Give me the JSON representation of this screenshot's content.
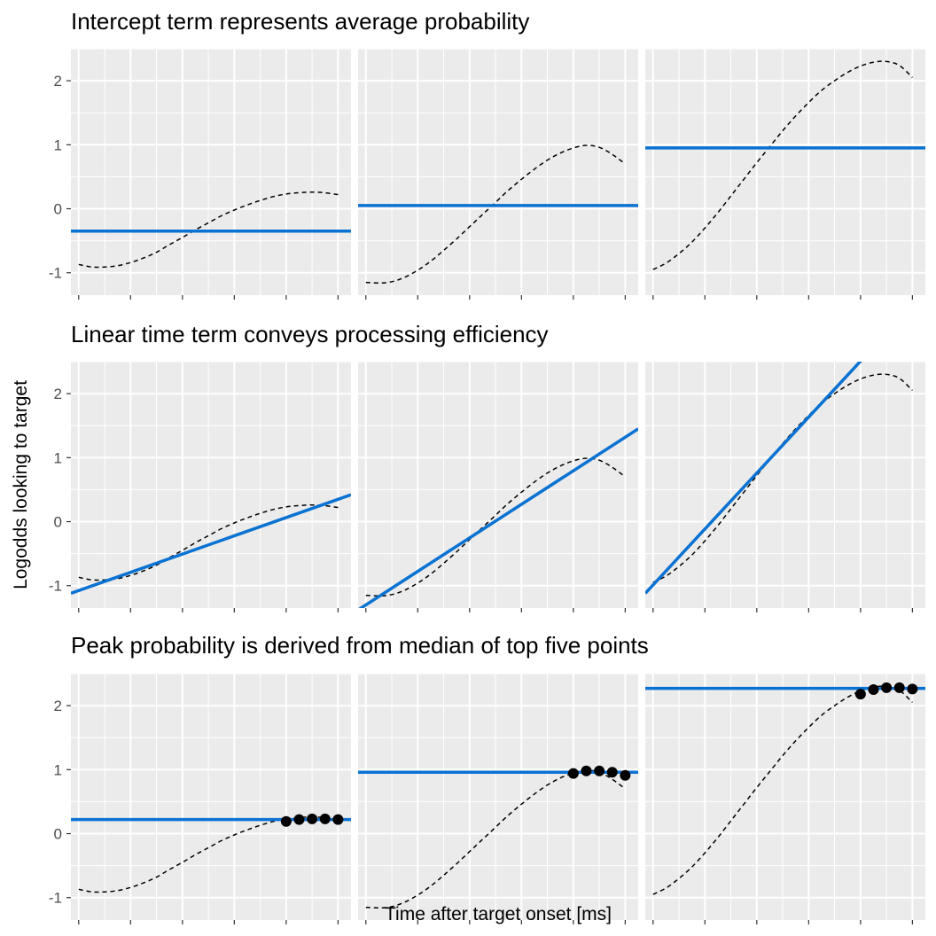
{
  "chart_data": {
    "type": "line",
    "xlabel": "Time after target onset [ms]",
    "ylabel": "Logodds looking to target",
    "ylim": [
      -1.35,
      2.5
    ],
    "yticks": [
      -1,
      0,
      1,
      2
    ],
    "x_tick_labels_shown": false,
    "grid": true,
    "panel_background": "#ebebeb",
    "colors": {
      "fit_line": "#0a72d2",
      "curve": "#000000",
      "points": "#000000"
    },
    "columns": [
      {
        "curve": {
          "x": [
            0,
            5,
            10,
            15,
            20,
            25,
            30,
            35,
            40,
            45,
            50,
            55,
            60,
            65,
            70,
            75,
            80,
            85,
            90,
            95,
            100
          ],
          "y": [
            -0.87,
            -0.91,
            -0.91,
            -0.89,
            -0.84,
            -0.77,
            -0.68,
            -0.56,
            -0.45,
            -0.33,
            -0.22,
            -0.11,
            -0.02,
            0.06,
            0.13,
            0.19,
            0.23,
            0.25,
            0.26,
            0.25,
            0.22
          ]
        }
      },
      {
        "curve": {
          "x": [
            0,
            5,
            10,
            15,
            20,
            25,
            30,
            35,
            40,
            45,
            50,
            55,
            60,
            65,
            70,
            75,
            80,
            85,
            90,
            95,
            100
          ],
          "y": [
            -1.15,
            -1.16,
            -1.14,
            -1.07,
            -0.96,
            -0.82,
            -0.65,
            -0.47,
            -0.28,
            -0.09,
            0.1,
            0.29,
            0.46,
            0.62,
            0.76,
            0.87,
            0.95,
            0.99,
            0.96,
            0.85,
            0.7
          ]
        }
      },
      {
        "curve": {
          "x": [
            0,
            5,
            10,
            15,
            20,
            25,
            30,
            35,
            40,
            45,
            50,
            55,
            60,
            65,
            70,
            75,
            80,
            85,
            90,
            95,
            100
          ],
          "y": [
            -0.95,
            -0.85,
            -0.7,
            -0.52,
            -0.3,
            -0.06,
            0.2,
            0.46,
            0.72,
            0.97,
            1.22,
            1.45,
            1.66,
            1.85,
            2.0,
            2.13,
            2.23,
            2.29,
            2.3,
            2.24,
            2.05
          ]
        }
      }
    ],
    "rows": [
      {
        "title": "Intercept term represents average probability",
        "fits": [
          {
            "type": "hline",
            "y": -0.35
          },
          {
            "type": "hline",
            "y": 0.05
          },
          {
            "type": "hline",
            "y": 0.95
          }
        ]
      },
      {
        "title": "Linear time term conveys processing efficiency",
        "fits": [
          {
            "type": "abline",
            "y_at_xmin": -1.12,
            "y_at_xmax": 0.42
          },
          {
            "type": "abline",
            "y_at_xmin": -1.38,
            "y_at_xmax": 1.45
          },
          {
            "type": "abline",
            "y_at_xmin": -1.12,
            "y_at_xmax": 3.6
          }
        ]
      },
      {
        "title": "Peak probability is derived from median of top five points",
        "fits": [
          {
            "type": "hline",
            "y": 0.22,
            "top_points": {
              "x": [
                80,
                85,
                90,
                95,
                100
              ],
              "y": [
                0.19,
                0.22,
                0.23,
                0.23,
                0.22
              ]
            }
          },
          {
            "type": "hline",
            "y": 0.96,
            "top_points": {
              "x": [
                80,
                85,
                90,
                95,
                100
              ],
              "y": [
                0.94,
                0.98,
                0.98,
                0.96,
                0.91
              ]
            }
          },
          {
            "type": "hline",
            "y": 2.27,
            "top_points": {
              "x": [
                80,
                85,
                90,
                95,
                100
              ],
              "y": [
                2.18,
                2.25,
                2.28,
                2.28,
                2.26
              ]
            }
          }
        ]
      }
    ]
  }
}
